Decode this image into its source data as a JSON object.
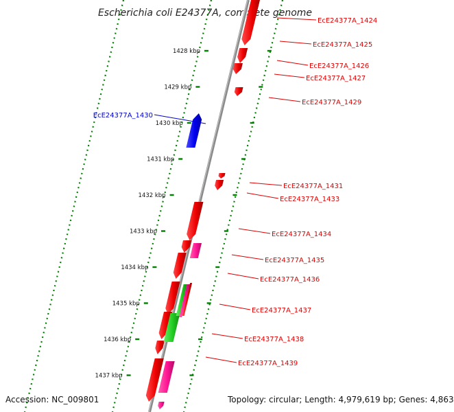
{
  "title": "Escherichia coli E24377A, complete genome",
  "footer": {
    "accession": "Accession: NC_009801",
    "topology": "Topology: circular; Length: 4,979,619 bp; Genes: 4,863"
  },
  "colors": {
    "forward_gene": "#ff0000",
    "reverse_gene": "#0000ff",
    "rna_gene": "#ff1493",
    "misc_feature_green": "#22cc22",
    "tick_dots": "#008000",
    "backbone": "#777777"
  },
  "kbp_scale": [
    {
      "kbp": 1428,
      "label": "1428 kbp"
    },
    {
      "kbp": 1429,
      "label": "1429 kbp"
    },
    {
      "kbp": 1430,
      "label": "1430 kbp"
    },
    {
      "kbp": 1431,
      "label": "1431 kbp"
    },
    {
      "kbp": 1432,
      "label": "1432 kbp"
    },
    {
      "kbp": 1433,
      "label": "1433 kbp"
    },
    {
      "kbp": 1434,
      "label": "1434 kbp"
    },
    {
      "kbp": 1435,
      "label": "1435 kbp"
    },
    {
      "kbp": 1436,
      "label": "1436 kbp"
    },
    {
      "kbp": 1437,
      "label": "1437 kbp"
    }
  ],
  "gene_labels": [
    {
      "text": "EcE24377A_1424",
      "strand": "forward"
    },
    {
      "text": "EcE24377A_1425",
      "strand": "forward"
    },
    {
      "text": "EcE24377A_1426",
      "strand": "forward"
    },
    {
      "text": "EcE24377A_1427",
      "strand": "forward"
    },
    {
      "text": "EcE24377A_1429",
      "strand": "forward"
    },
    {
      "text": "EcE24377A_1430",
      "strand": "reverse"
    },
    {
      "text": "EcE24377A_1431",
      "strand": "forward"
    },
    {
      "text": "EcE24377A_1433",
      "strand": "forward"
    },
    {
      "text": "EcE24377A_1434",
      "strand": "forward"
    },
    {
      "text": "EcE24377A_1435",
      "strand": "forward"
    },
    {
      "text": "EcE24377A_1436",
      "strand": "forward"
    },
    {
      "text": "EcE24377A_1437",
      "strand": "forward"
    },
    {
      "text": "EcE24377A_1438",
      "strand": "forward"
    },
    {
      "text": "EcE24377A_1439",
      "strand": "forward"
    }
  ]
}
